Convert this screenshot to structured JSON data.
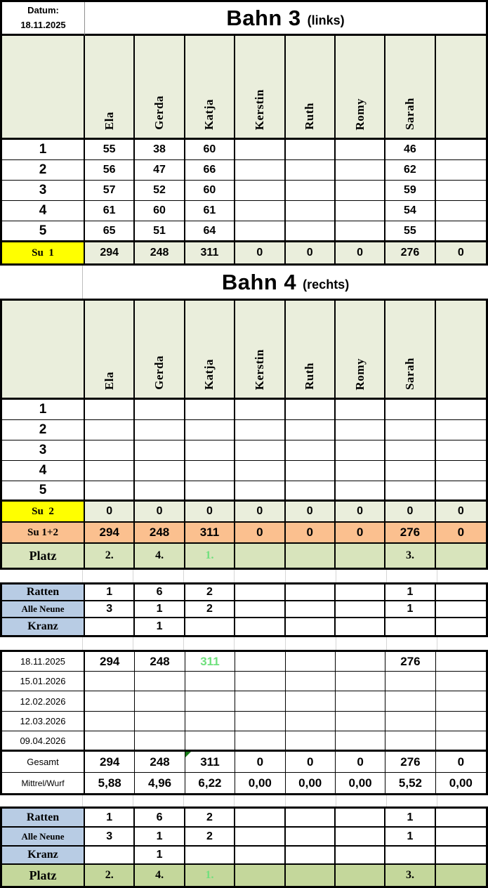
{
  "colors": {
    "header_bg": "#EAEEDC",
    "sum_label_bg": "#FFFF00",
    "su12_bg": "#FBC08F",
    "platz_upper_bg": "#D8E4BC",
    "platz_lower_bg": "#C4D79B",
    "bonus_label_bg": "#B8CCE4",
    "green_text": "#6FE07D",
    "corner_flag": "#177B17"
  },
  "datum": {
    "label": "Datum:",
    "value": "18.11.2025"
  },
  "players": [
    "Ela",
    "Gerda",
    "Katja",
    "Kerstin",
    "Ruth",
    "Romy",
    "Sarah",
    ""
  ],
  "bahn3": {
    "title": "Bahn 3",
    "subtitle": "(links)",
    "rows": [
      {
        "label": "1",
        "values": [
          "55",
          "38",
          "60",
          "",
          "",
          "",
          "46",
          ""
        ]
      },
      {
        "label": "2",
        "values": [
          "56",
          "47",
          "66",
          "",
          "",
          "",
          "62",
          ""
        ]
      },
      {
        "label": "3",
        "values": [
          "57",
          "52",
          "60",
          "",
          "",
          "",
          "59",
          ""
        ]
      },
      {
        "label": "4",
        "values": [
          "61",
          "60",
          "61",
          "",
          "",
          "",
          "54",
          ""
        ]
      },
      {
        "label": "5",
        "values": [
          "65",
          "51",
          "64",
          "",
          "",
          "",
          "55",
          ""
        ]
      }
    ],
    "sum": {
      "label": "Su  1",
      "values": [
        "294",
        "248",
        "311",
        "0",
        "0",
        "0",
        "276",
        "0"
      ]
    }
  },
  "bahn4": {
    "title": "Bahn 4",
    "subtitle": "(rechts)",
    "rows": [
      {
        "label": "1",
        "values": [
          "",
          "",
          "",
          "",
          "",
          "",
          "",
          ""
        ]
      },
      {
        "label": "2",
        "values": [
          "",
          "",
          "",
          "",
          "",
          "",
          "",
          ""
        ]
      },
      {
        "label": "3",
        "values": [
          "",
          "",
          "",
          "",
          "",
          "",
          "",
          ""
        ]
      },
      {
        "label": "4",
        "values": [
          "",
          "",
          "",
          "",
          "",
          "",
          "",
          ""
        ]
      },
      {
        "label": "5",
        "values": [
          "",
          "",
          "",
          "",
          "",
          "",
          "",
          ""
        ]
      }
    ],
    "sum": {
      "label": "Su  2",
      "values": [
        "0",
        "0",
        "0",
        "0",
        "0",
        "0",
        "0",
        "0"
      ]
    }
  },
  "totals": {
    "su12": {
      "label": "Su 1+2",
      "values": [
        "294",
        "248",
        "311",
        "0",
        "0",
        "0",
        "276",
        "0"
      ]
    },
    "platz": {
      "label": "Platz",
      "values": [
        "2.",
        "4.",
        "1.",
        "",
        "",
        "",
        "3.",
        ""
      ]
    }
  },
  "bonus_upper": {
    "rows": [
      {
        "label": "Ratten",
        "values": [
          "1",
          "6",
          "2",
          "",
          "",
          "",
          "1",
          ""
        ]
      },
      {
        "label": "Alle Neune",
        "values": [
          "3",
          "1",
          "2",
          "",
          "",
          "",
          "1",
          ""
        ]
      },
      {
        "label": "Kranz",
        "values": [
          "",
          "1",
          "",
          "",
          "",
          "",
          "",
          ""
        ]
      }
    ]
  },
  "season": {
    "date_rows": [
      {
        "label": "18.11.2025",
        "values": [
          "294",
          "248",
          "311",
          "",
          "",
          "",
          "276",
          ""
        ]
      },
      {
        "label": "15.01.2026",
        "values": [
          "",
          "",
          "",
          "",
          "",
          "",
          "",
          ""
        ]
      },
      {
        "label": "12.02.2026",
        "values": [
          "",
          "",
          "",
          "",
          "",
          "",
          "",
          ""
        ]
      },
      {
        "label": "12.03.2026",
        "values": [
          "",
          "",
          "",
          "",
          "",
          "",
          "",
          ""
        ]
      },
      {
        "label": "09.04.2026",
        "values": [
          "",
          "",
          "",
          "",
          "",
          "",
          "",
          ""
        ]
      }
    ],
    "gesamt": {
      "label": "Gesamt",
      "values": [
        "294",
        "248",
        "311",
        "0",
        "0",
        "0",
        "276",
        "0"
      ]
    },
    "mittel": {
      "label": "Mittrel/Wurf",
      "values": [
        "5,88",
        "4,96",
        "6,22",
        "0,00",
        "0,00",
        "0,00",
        "5,52",
        "0,00"
      ]
    }
  },
  "bonus_lower": {
    "rows": [
      {
        "label": "Ratten",
        "values": [
          "1",
          "6",
          "2",
          "",
          "",
          "",
          "1",
          ""
        ]
      },
      {
        "label": "Alle Neune",
        "values": [
          "3",
          "1",
          "2",
          "",
          "",
          "",
          "1",
          ""
        ]
      },
      {
        "label": "Kranz",
        "values": [
          "",
          "1",
          "",
          "",
          "",
          "",
          "",
          ""
        ]
      }
    ],
    "platz": {
      "label": "Platz",
      "values": [
        "2.",
        "4.",
        "1.",
        "",
        "",
        "",
        "3.",
        ""
      ]
    }
  }
}
